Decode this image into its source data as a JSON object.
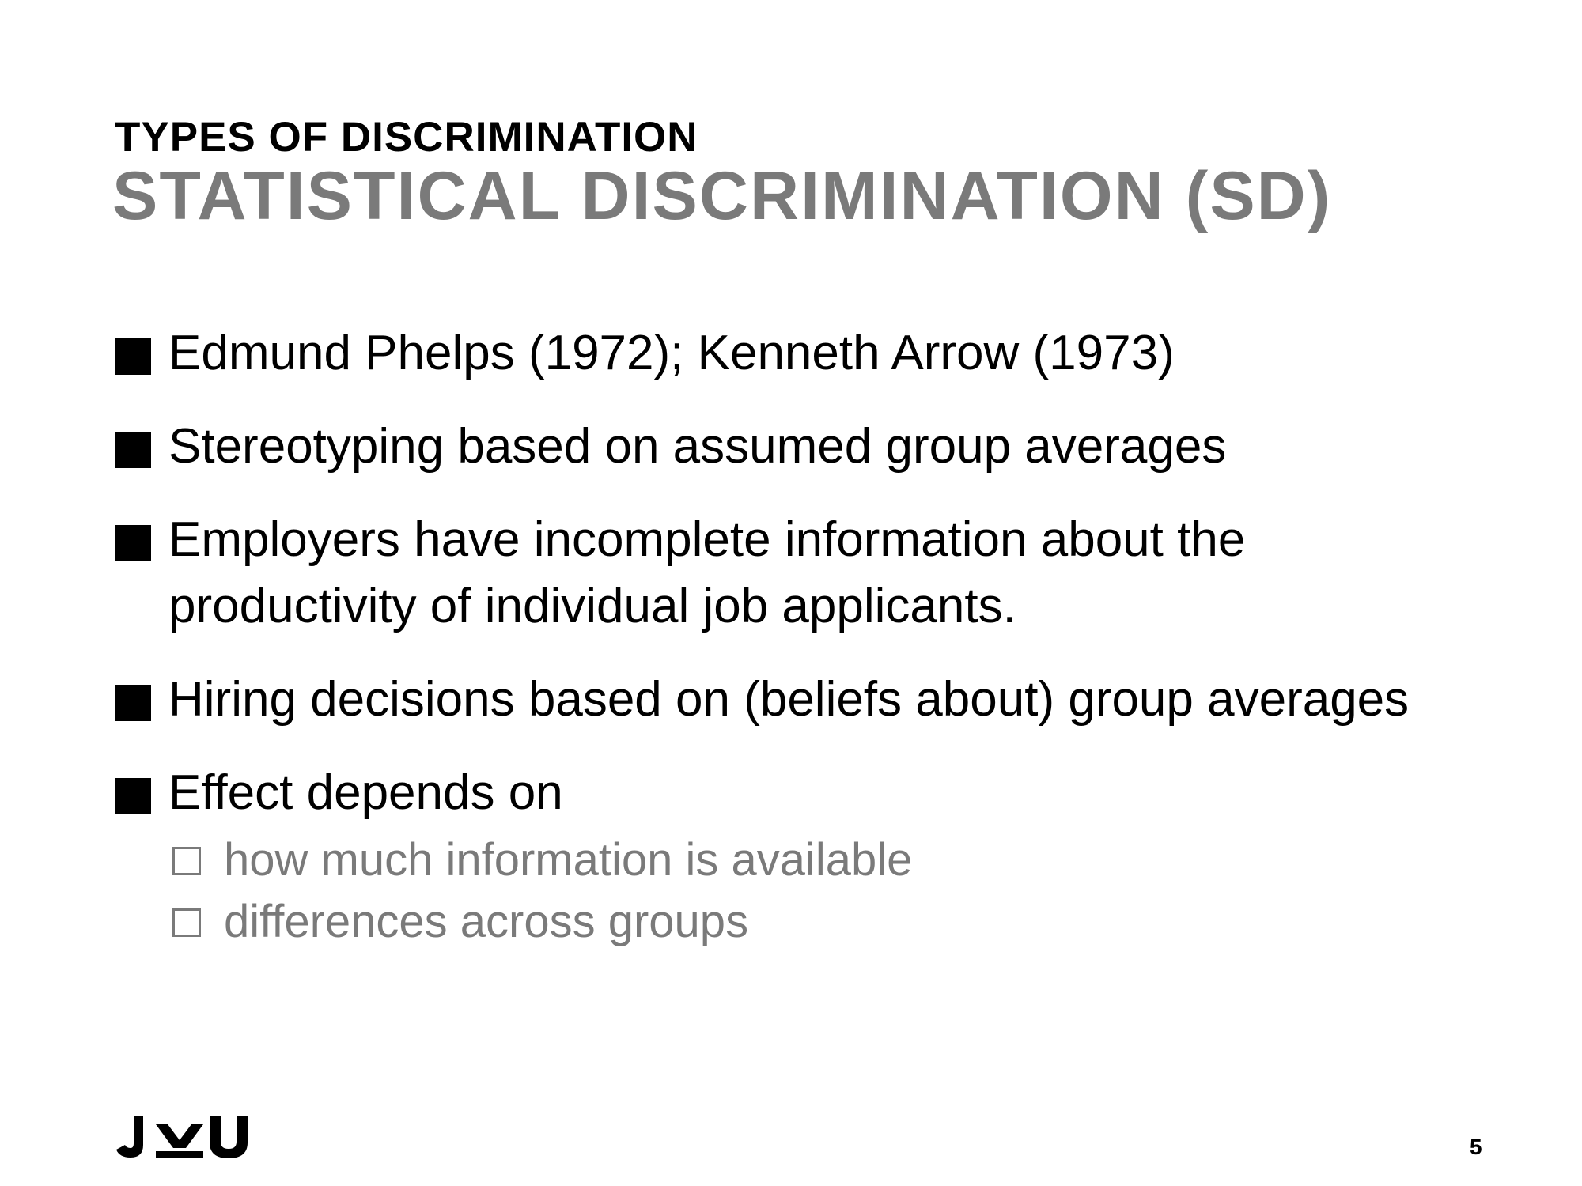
{
  "slide": {
    "kicker": "TYPES OF DISCRIMINATION",
    "title": "STATISTICAL DISCRIMINATION (SD)",
    "bullets": [
      {
        "text": "Edmund Phelps (1972); Kenneth Arrow (1973)"
      },
      {
        "text": "Stereotyping based on assumed group averages"
      },
      {
        "text": "Employers have incomplete information about the productivity of individual job applicants."
      },
      {
        "text": "Hiring decisions based on (beliefs about) group averages"
      },
      {
        "text": "Effect depends on",
        "subbullets": [
          "how much information is available",
          "differences across groups"
        ]
      }
    ],
    "logo_text": "JKU",
    "page_number": "5"
  },
  "colors": {
    "title_gray": "#7a7a7a",
    "text": "#000000",
    "background": "#ffffff"
  },
  "icons": {
    "bullet": "filled-square",
    "subbullet": "hollow-square",
    "logo": "jku-logo"
  }
}
